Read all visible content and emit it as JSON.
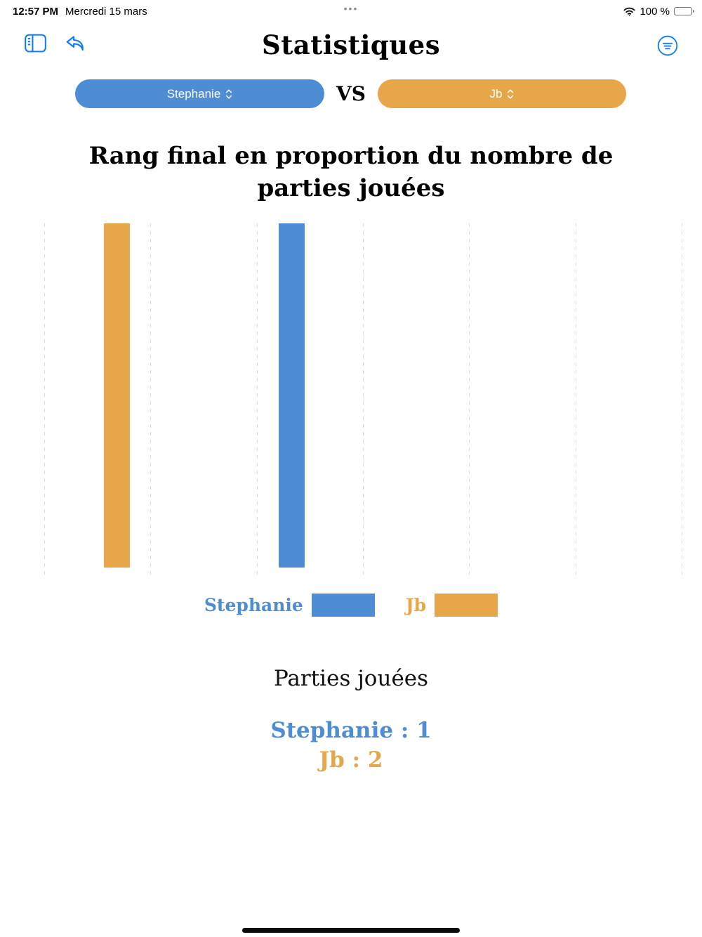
{
  "status_bar": {
    "time": "12:57 PM",
    "date": "Mercredi 15 mars",
    "multitask_dots": "•••",
    "battery": "100 %"
  },
  "nav": {
    "title": "Statistiques"
  },
  "selector": {
    "left_player": "Stephanie",
    "vs": "VS",
    "right_player": "Jb"
  },
  "chart_data": {
    "type": "bar",
    "title": "Rang final en proportion du nombre de parties jouées",
    "categories": [
      "Jb",
      "Stephanie"
    ],
    "bars": [
      {
        "name": "Jb",
        "value": 1.0,
        "color": "#E8A64B"
      },
      {
        "name": "Stephanie",
        "value": 1.0,
        "color": "#4E8CD3"
      }
    ],
    "ylim": [
      0,
      1
    ],
    "grid": "vertical-dashed",
    "gridline_count": 7,
    "legend_position": "bottom",
    "legend": [
      {
        "label": "Stephanie",
        "color": "#4E8CD3"
      },
      {
        "label": "Jb",
        "color": "#E8A64B"
      }
    ]
  },
  "stats": {
    "heading": "Parties jouées",
    "lines": [
      {
        "label": "Stephanie : 1",
        "color": "#4E8CD3"
      },
      {
        "label": "Jb : 2",
        "color": "#E8A64B"
      }
    ]
  },
  "colors": {
    "player_blue": "#4E8CD3",
    "player_orange": "#E8A64B",
    "ios_blue": "#0A7AFF",
    "gridline": "#DCDCDC"
  },
  "icons": {
    "sidebar": "sidebar-left",
    "back": "undo-curved-arrow",
    "filter": "filter-lines-circle",
    "wifi": "wifi",
    "battery": "battery-full",
    "pill_chevron": "chevron-up-down"
  }
}
